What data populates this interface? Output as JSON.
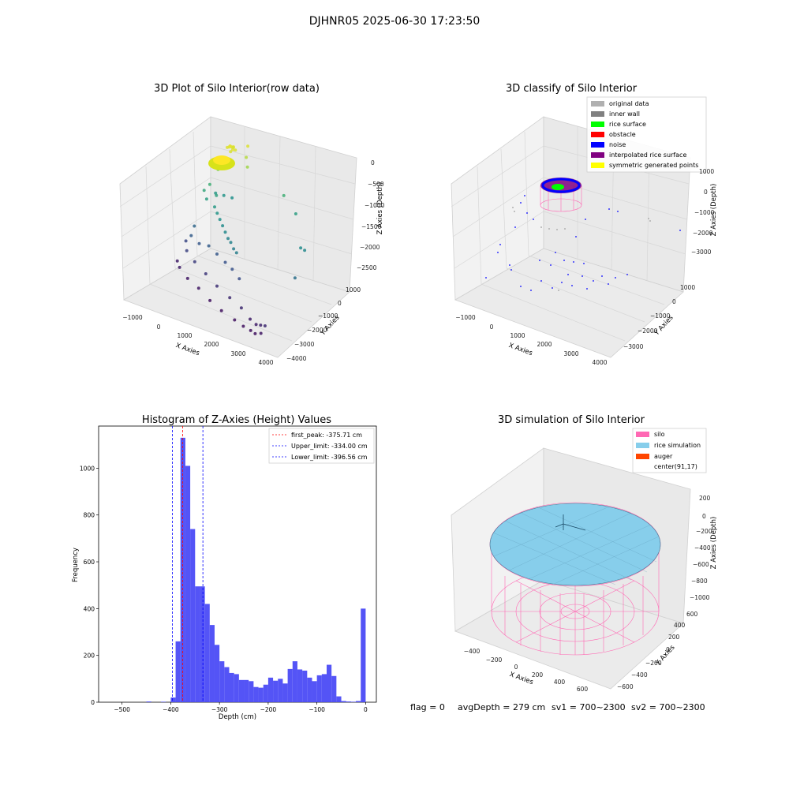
{
  "figure_title": "DJHNR05 2025-06-30 17:23:50",
  "footer": {
    "flag": "flag = 0",
    "avg_depth": "avgDepth = 279 cm",
    "sv1": "sv1 = 700~2300",
    "sv2": "sv2 = 700~2300"
  },
  "colors": {
    "hist_bar": "#4b4bf5",
    "first_peak": "#ff0000",
    "limit": "#0000ff",
    "silo": "#ff69b4",
    "rice": "#87ceeb",
    "auger": "#ff4500",
    "noise": "#0000ff",
    "rice_surface": "#00ff00",
    "interpolated": "#800080",
    "symmetric": "#ffff00",
    "original": "#b0b0b0",
    "inner_wall": "#808080",
    "obstacle": "#ff0000",
    "pane": "#f0f0f0",
    "grid": "#d8d8d8"
  },
  "chart_data": [
    {
      "type": "scatter",
      "projection": "3d",
      "title": "3D Plot of Silo Interior(row data)",
      "xlabel": "X Axies",
      "ylabel": "Y Axies",
      "zlabel": "Z Axies (Depth)",
      "x_ticks": [
        "−1000",
        "0",
        "1000",
        "2000",
        "3000",
        "4000"
      ],
      "y_ticks": [
        "−4000",
        "−3000",
        "−2000",
        "−1000",
        "0",
        "1000"
      ],
      "z_ticks": [
        "0",
        "−500",
        "−1000",
        "−1500",
        "−2000",
        "−2500"
      ],
      "xlim": [
        -1300,
        4000
      ],
      "ylim": [
        -4000,
        1800
      ],
      "zlim": [
        -2700,
        0
      ],
      "colormap": "viridis (by depth)",
      "points": [
        [
          300,
          300,
          -100
        ],
        [
          350,
          350,
          -100
        ],
        [
          250,
          250,
          -100
        ],
        [
          400,
          200,
          -120
        ],
        [
          200,
          400,
          -120
        ],
        [
          300,
          450,
          -140
        ],
        [
          150,
          300,
          -140
        ],
        [
          450,
          300,
          -140
        ],
        [
          350,
          150,
          -160
        ],
        [
          250,
          500,
          -160
        ],
        [
          600,
          900,
          -150
        ],
        [
          700,
          600,
          -300
        ],
        [
          900,
          300,
          -400
        ],
        [
          -300,
          500,
          -700
        ],
        [
          -500,
          300,
          -1000
        ],
        [
          -600,
          100,
          -1100
        ],
        [
          -400,
          -100,
          -1200
        ],
        [
          -200,
          200,
          -1150
        ],
        [
          0,
          -300,
          -1250
        ],
        [
          200,
          -500,
          -1300
        ],
        [
          400,
          -700,
          -1350
        ],
        [
          600,
          -900,
          -1400
        ],
        [
          800,
          -1100,
          -1450
        ],
        [
          1000,
          -1300,
          -1500
        ],
        [
          1200,
          -1500,
          -1500
        ],
        [
          1400,
          -1700,
          -1550
        ],
        [
          1600,
          -1900,
          -1550
        ],
        [
          -500,
          700,
          -1250
        ],
        [
          -300,
          900,
          -1300
        ],
        [
          -100,
          1100,
          -1350
        ],
        [
          1800,
          1200,
          -1000
        ],
        [
          2400,
          900,
          -1200
        ],
        [
          3300,
          -600,
          -1400
        ],
        [
          3400,
          -500,
          -1450
        ],
        [
          3600,
          -1700,
          -1700
        ],
        [
          -800,
          -200,
          -1800
        ],
        [
          -700,
          -600,
          -1900
        ],
        [
          -300,
          -800,
          -1950
        ],
        [
          100,
          -900,
          -1900
        ],
        [
          500,
          -1100,
          -1950
        ],
        [
          900,
          -1300,
          -2000
        ],
        [
          1300,
          -1600,
          -2000
        ],
        [
          1700,
          -1900,
          -2050
        ],
        [
          -1000,
          -400,
          -2100
        ],
        [
          -700,
          -900,
          -2150
        ],
        [
          -200,
          -1300,
          -2200
        ],
        [
          400,
          -1700,
          -2250
        ],
        [
          1000,
          -2100,
          -2300
        ],
        [
          1600,
          -2400,
          -2350
        ],
        [
          2200,
          -2800,
          -2350
        ],
        [
          -1100,
          -800,
          -2450
        ],
        [
          -800,
          -1200,
          -2450
        ],
        [
          -300,
          -1600,
          -2500
        ],
        [
          300,
          -2000,
          -2500
        ],
        [
          900,
          -2400,
          -2550
        ],
        [
          1500,
          -2800,
          -2550
        ],
        [
          2100,
          -3100,
          -2550
        ],
        [
          2500,
          -3300,
          -2550
        ],
        [
          2800,
          -3400,
          -2550
        ],
        [
          3000,
          -3500,
          -2550
        ],
        [
          3200,
          -3500,
          -2500
        ],
        [
          2600,
          -3000,
          -2450
        ],
        [
          2900,
          -3200,
          -2450
        ],
        [
          3100,
          -3300,
          -2400
        ],
        [
          3300,
          -3400,
          -2350
        ]
      ]
    },
    {
      "type": "scatter",
      "projection": "3d",
      "title": "3D classify of Silo Interior",
      "xlabel": "X Axies",
      "ylabel": "Y Axies",
      "zlabel": "Z Axies (Depth)",
      "x_ticks": [
        "−1000",
        "0",
        "1000",
        "2000",
        "3000",
        "4000"
      ],
      "y_ticks": [
        "−3000",
        "−2000",
        "−1000",
        "0",
        "1000"
      ],
      "z_ticks": [
        "1000",
        "0",
        "−1000",
        "−2000",
        "−3000"
      ],
      "xlim": [
        -1300,
        4000
      ],
      "ylim": [
        -3500,
        1500
      ],
      "zlim": [
        -3700,
        1500
      ],
      "legend": [
        "original data",
        "inner wall",
        "rice surface",
        "obstacle",
        "noise",
        "interpolated rice surface",
        "symmetric generated points"
      ],
      "legend_position": "upper right"
    },
    {
      "type": "bar",
      "title": "Histogram of Z-Axies (Height) Values",
      "xlabel": "Depth (cm)",
      "ylabel": "Frequency",
      "xlim": [
        -548,
        22
      ],
      "ylim": [
        0,
        1180
      ],
      "x_ticks": [
        "−500",
        "−400",
        "−300",
        "−200",
        "−100",
        "0"
      ],
      "y_ticks": [
        "0",
        "200",
        "400",
        "600",
        "800",
        "1000"
      ],
      "bin_width": 10,
      "bins_start": [
        -450,
        -420,
        -400,
        -390,
        -380,
        -370,
        -360,
        -350,
        -340,
        -330,
        -320,
        -310,
        -300,
        -290,
        -280,
        -270,
        -260,
        -250,
        -240,
        -230,
        -220,
        -210,
        -200,
        -190,
        -180,
        -170,
        -160,
        -150,
        -140,
        -130,
        -120,
        -110,
        -100,
        -90,
        -80,
        -70,
        -60,
        -50,
        -40,
        -30,
        -20,
        -10
      ],
      "counts": [
        3,
        2,
        20,
        260,
        1130,
        1010,
        740,
        495,
        495,
        420,
        330,
        245,
        175,
        150,
        125,
        120,
        95,
        95,
        90,
        65,
        62,
        75,
        105,
        92,
        100,
        80,
        142,
        175,
        140,
        135,
        105,
        90,
        115,
        120,
        160,
        112,
        25,
        5,
        3,
        2,
        5,
        400
      ],
      "legend": [
        {
          "label": "first_peak: -375.71 cm",
          "value": -375.71,
          "color": "#ff0000"
        },
        {
          "label": "Upper_limit: -334.00 cm",
          "value": -334.0,
          "color": "#0000ff"
        },
        {
          "label": "Lower_limit: -396.56 cm",
          "value": -396.56,
          "color": "#0000ff"
        }
      ],
      "legend_position": "upper right"
    },
    {
      "type": "surface",
      "projection": "3d",
      "title": "3D simulation of Silo Interior",
      "xlabel": "X Axies",
      "ylabel": "Y Axies",
      "zlabel": "Z Axies (Depth)",
      "x_ticks": [
        "−400",
        "−200",
        "0",
        "200",
        "400",
        "600"
      ],
      "y_ticks": [
        "−600",
        "−400",
        "−200",
        "0",
        "200",
        "400",
        "600"
      ],
      "z_ticks": [
        "200",
        "0",
        "−200",
        "−400",
        "−600",
        "−800",
        "−1000"
      ],
      "xlim": [
        -600,
        700
      ],
      "ylim": [
        -700,
        700
      ],
      "zlim": [
        -1100,
        300
      ],
      "legend": [
        "silo",
        "rice simulation",
        "auger",
        "center(91,17)"
      ],
      "legend_position": "upper right"
    }
  ]
}
